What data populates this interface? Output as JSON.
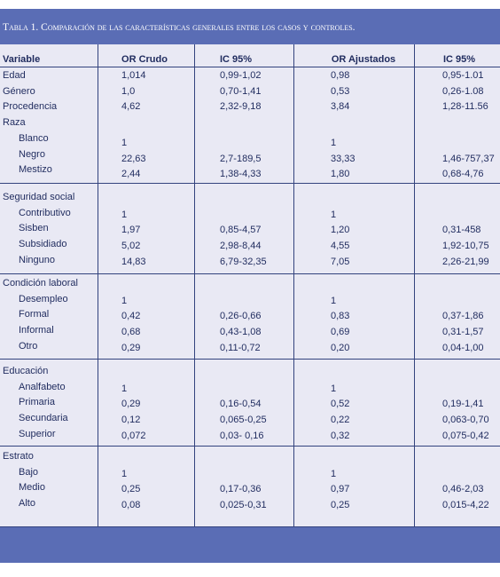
{
  "table": {
    "title": "Tabla 1. Comparación de las características generales entre los casos y controles.",
    "header": [
      "Variable",
      "OR Crudo",
      "IC 95%",
      "OR Ajustados",
      "IC 95%"
    ],
    "groups": [
      {
        "rows": [
          {
            "label": "Edad",
            "or_crudo": "1,014",
            "ic_crudo": "0,99-1,02",
            "or_ajustado": "0,98",
            "ic_ajustado": "0,95-1.01"
          },
          {
            "label": "Género",
            "or_crudo": "1,0",
            "ic_crudo": "0,70-1,41",
            "or_ajustado": "0,53",
            "ic_ajustado": "0,26-1.08"
          },
          {
            "label": "Procedencia",
            "or_crudo": "4,62",
            "ic_crudo": "2,32-9,18",
            "or_ajustado": "3,84",
            "ic_ajustado": "1,28-11.56"
          },
          {
            "label": "Raza"
          },
          {
            "label": "Blanco",
            "or_crudo": "1",
            "or_ajustado": "1"
          },
          {
            "label": "Negro",
            "or_crudo": "22,63",
            "ic_crudo": "2,7-189,5",
            "or_ajustado": "33,33",
            "ic_ajustado": "1,46-757,37"
          },
          {
            "label": "Mestizo",
            "or_crudo": "2,44",
            "ic_crudo": "1,38-4,33",
            "or_ajustado": "1,80",
            "ic_ajustado": "0,68-4,76"
          }
        ]
      },
      {
        "rows": [
          {
            "label": "Seguridad social"
          },
          {
            "label": "Contributivo",
            "or_crudo": "1",
            "or_ajustado": "1"
          },
          {
            "label": "Sisben",
            "or_crudo": "1,97",
            "ic_crudo": "0,85-4,57",
            "or_ajustado": "1,20",
            "ic_ajustado": "0,31-458"
          },
          {
            "label": "Subsidiado",
            "or_crudo": "5,02",
            "ic_crudo": "2,98-8,44",
            "or_ajustado": "4,55",
            "ic_ajustado": "1,92-10,75"
          },
          {
            "label": "Ninguno",
            "or_crudo": "14,83",
            "ic_crudo": "6,79-32,35",
            "or_ajustado": "7,05",
            "ic_ajustado": "2,26-21,99"
          }
        ]
      },
      {
        "rows": [
          {
            "label": "Condición laboral"
          },
          {
            "label": "Desempleo",
            "or_crudo": "1",
            "or_ajustado": "1"
          },
          {
            "label": "Formal",
            "or_crudo": "0,42",
            "ic_crudo": "0,26-0,66",
            "or_ajustado": "0,83",
            "ic_ajustado": "0,37-1,86"
          },
          {
            "label": "Informal",
            "or_crudo": "0,68",
            "ic_crudo": "0,43-1,08",
            "or_ajustado": "0,69",
            "ic_ajustado": "0,31-1,57"
          },
          {
            "label": "Otro",
            "or_crudo": "0,29",
            "ic_crudo": "0,11-0,72",
            "or_ajustado": "0,20",
            "ic_ajustado": "0,04-1,00"
          }
        ]
      },
      {
        "rows": [
          {
            "label": "Educación"
          },
          {
            "label": "Analfabeto",
            "or_crudo": "1",
            "or_ajustado": "1"
          },
          {
            "label": "Primaria",
            "or_crudo": "0,29",
            "ic_crudo": "0,16-0,54",
            "or_ajustado": "0,52",
            "ic_ajustado": "0,19-1,41"
          },
          {
            "label": "Secundaria",
            "or_crudo": "0,12",
            "ic_crudo": "0,065-0,25",
            "or_ajustado": "0,22",
            "ic_ajustado": "0,063-0,70"
          },
          {
            "label": "Superior",
            "or_crudo": "0,072",
            "ic_crudo": "0,03- 0,16",
            "or_ajustado": "0,32",
            "ic_ajustado": "0,075-0,42"
          }
        ]
      },
      {
        "rows": [
          {
            "label": "Estrato"
          },
          {
            "label": "Bajo",
            "or_crudo": "1",
            "or_ajustado": "1"
          },
          {
            "label": "Medio",
            "or_crudo": "0,25",
            "ic_crudo": "0,17-0,36",
            "or_ajustado": "0,97",
            "ic_ajustado": "0,46-2,03"
          },
          {
            "label": "Alto",
            "or_crudo": "0,08",
            "ic_crudo": "0,025-0,31",
            "or_ajustado": "0,25",
            "ic_ajustado": "0,015-4,22"
          }
        ]
      }
    ]
  }
}
